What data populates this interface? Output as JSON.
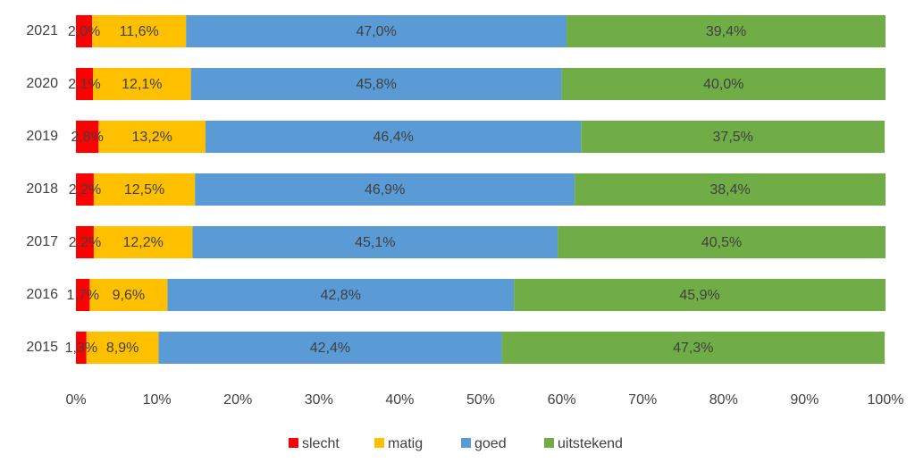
{
  "chart_data": {
    "type": "stacked_bar_horizontal",
    "categories": [
      "2021",
      "2020",
      "2019",
      "2018",
      "2017",
      "2016",
      "2015"
    ],
    "series": [
      {
        "name": "slecht",
        "color": "#ff0000",
        "values": [
          2.0,
          2.1,
          2.8,
          2.2,
          2.2,
          1.7,
          1.3
        ],
        "value_labels": [
          "2,0%",
          "2,1%",
          "2,8%",
          "2,2%",
          "2,2%",
          "1,7%",
          "1,3%"
        ]
      },
      {
        "name": "matig",
        "color": "#ffc000",
        "values": [
          11.6,
          12.1,
          13.2,
          12.5,
          12.2,
          9.6,
          8.9
        ],
        "value_labels": [
          "11,6%",
          "12,1%",
          "13,2%",
          "12,5%",
          "12,2%",
          "9,6%",
          "8,9%"
        ]
      },
      {
        "name": "goed",
        "color": "#5b9bd5",
        "values": [
          47.0,
          45.8,
          46.4,
          46.9,
          45.1,
          42.8,
          42.4
        ],
        "value_labels": [
          "47,0%",
          "45,8%",
          "46,4%",
          "46,9%",
          "45,1%",
          "42,8%",
          "42,4%"
        ]
      },
      {
        "name": "uitstekend",
        "color": "#70ad47",
        "values": [
          39.4,
          40.0,
          37.5,
          38.4,
          40.5,
          45.9,
          47.3
        ],
        "value_labels": [
          "39,4%",
          "40,0%",
          "37,5%",
          "38,4%",
          "40,5%",
          "45,9%",
          "47,3%"
        ]
      }
    ],
    "xlim": [
      0,
      100
    ],
    "xticks": [
      {
        "value": 0,
        "label": "0%"
      },
      {
        "value": 10,
        "label": "10%"
      },
      {
        "value": 20,
        "label": "20%"
      },
      {
        "value": 30,
        "label": "30%"
      },
      {
        "value": 40,
        "label": "40%"
      },
      {
        "value": 50,
        "label": "50%"
      },
      {
        "value": 60,
        "label": "60%"
      },
      {
        "value": 70,
        "label": "70%"
      },
      {
        "value": 80,
        "label": "80%"
      },
      {
        "value": 90,
        "label": "90%"
      },
      {
        "value": 100,
        "label": "100%"
      }
    ],
    "legend": "bottom"
  }
}
